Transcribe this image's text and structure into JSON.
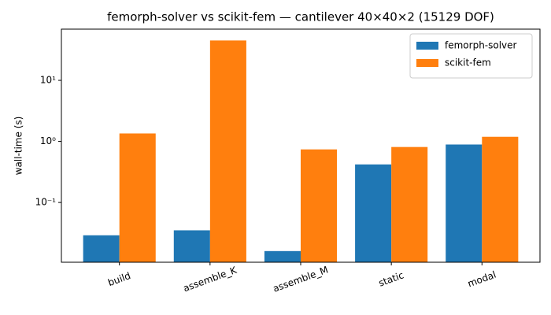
{
  "chart_data": {
    "type": "bar",
    "title": "femorph-solver vs scikit-fem — cantilever 40×40×2 (15129 DOF)",
    "y_label": "wall-time (s)",
    "categories": [
      "build",
      "assemble_K",
      "assemble_M",
      "static",
      "modal"
    ],
    "series": [
      {
        "name": "femorph-solver",
        "color": "#1f77b4",
        "values": [
          0.029,
          0.035,
          0.016,
          0.42,
          0.89
        ]
      },
      {
        "name": "scikit-fem",
        "color": "#ff7f0e",
        "values": [
          1.35,
          45,
          0.74,
          0.81,
          1.19
        ]
      }
    ],
    "log_y": true,
    "ylim": [
      0.0105,
      69
    ],
    "yticks": [
      {
        "value": 0.1,
        "label": "10⁻¹"
      },
      {
        "value": 1,
        "label": "10⁰"
      },
      {
        "value": 10,
        "label": "10¹"
      }
    ],
    "legend": "upper right"
  }
}
